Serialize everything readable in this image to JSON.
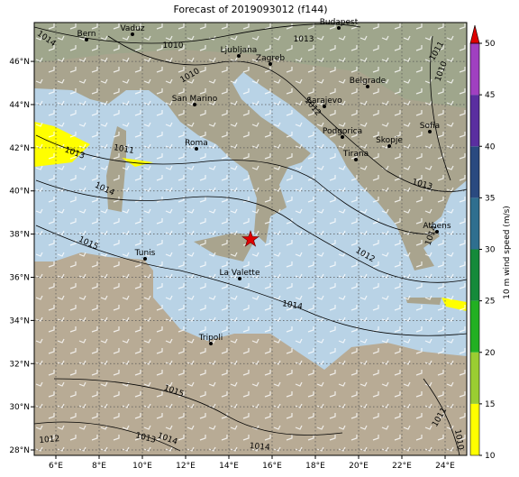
{
  "title": "Forecast of 2019093012 (f144)",
  "map": {
    "xlim": [
      5,
      25
    ],
    "ylim": [
      27.75,
      47.8
    ],
    "xticks": [
      {
        "value": 6,
        "label": "6°E"
      },
      {
        "value": 8,
        "label": "8°E"
      },
      {
        "value": 10,
        "label": "10°E"
      },
      {
        "value": 12,
        "label": "12°E"
      },
      {
        "value": 14,
        "label": "14°E"
      },
      {
        "value": 16,
        "label": "16°E"
      },
      {
        "value": 18,
        "label": "18°E"
      },
      {
        "value": 20,
        "label": "20°E"
      },
      {
        "value": 22,
        "label": "22°E"
      },
      {
        "value": 24,
        "label": "24°E"
      }
    ],
    "yticks": [
      {
        "value": 28,
        "label": "28°N"
      },
      {
        "value": 30,
        "label": "30°N"
      },
      {
        "value": 32,
        "label": "32°N"
      },
      {
        "value": 34,
        "label": "34°N"
      },
      {
        "value": 36,
        "label": "36°N"
      },
      {
        "value": 38,
        "label": "38°N"
      },
      {
        "value": 40,
        "label": "40°N"
      },
      {
        "value": 42,
        "label": "42°N"
      },
      {
        "value": 44,
        "label": "44°N"
      },
      {
        "value": 46,
        "label": "46°N"
      }
    ],
    "cities": [
      "Bern",
      "Vaduz",
      "Budapest",
      "Ljubljana",
      "Zagreb",
      "San Marino",
      "Sarajevo",
      "Belgrade",
      "Roma",
      "Podgorica",
      "Skopje",
      "Sofia",
      "Tirana",
      "Athens",
      "Tunis",
      "La Valette",
      "Tripoli"
    ],
    "contour_labels": [
      1014,
      1010,
      1013,
      1011,
      1010,
      1010,
      1012,
      1013,
      1011,
      1014,
      1013,
      1015,
      1012,
      1014,
      1014,
      1015,
      1014,
      1013,
      1012,
      1014,
      1011,
      1010
    ]
  },
  "colorbar": {
    "label": "10 m wind speed (m/s)",
    "lim": [
      10,
      50
    ],
    "ticks": [
      10,
      15,
      20,
      25,
      30,
      35,
      40,
      45,
      50
    ],
    "colors": [
      "#ffff00",
      "#9acd32",
      "#22b022",
      "#158a3a",
      "#2f6f8f",
      "#2a4a80",
      "#5a2ea0",
      "#a040c0"
    ],
    "extend_color": "#dd0000"
  }
}
